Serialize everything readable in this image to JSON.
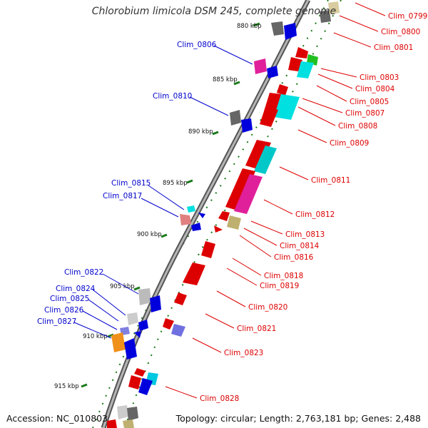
{
  "title": "Chlorobium limicola DSM 245, complete genome",
  "footer": {
    "accession": "Accession: NC_010803",
    "summary": "Topology: circular; Length: 2,763,181 bp; Genes: 2,488"
  },
  "ticks": [
    "880 kbp",
    "885 kbp",
    "890 kbp",
    "895 kbp",
    "900 kbp",
    "905 kbp",
    "910 kbp",
    "915 kbp"
  ],
  "genes_right": [
    "Clim_0799",
    "Clim_0800",
    "Clim_0801",
    "Clim_0803",
    "Clim_0804",
    "Clim_0805",
    "Clim_0807",
    "Clim_0808",
    "Clim_0809",
    "Clim_0811",
    "Clim_0812",
    "Clim_0813",
    "Clim_0814",
    "Clim_0816",
    "Clim_0818",
    "Clim_0819",
    "Clim_0820",
    "Clim_0821",
    "Clim_0823",
    "Clim_0828"
  ],
  "genes_left": [
    "Clim_0806",
    "Clim_0810",
    "Clim_0815",
    "Clim_0817",
    "Clim_0822",
    "Clim_0824",
    "Clim_0825",
    "Clim_0826",
    "Clim_0827"
  ],
  "colors": {
    "right_label": "#dd0000",
    "left_label": "#0000cc",
    "backbone": "#808080",
    "tick": "#1a7a1a"
  }
}
